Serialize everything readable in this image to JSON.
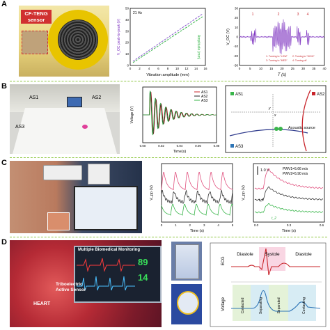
{
  "panels": {
    "a": {
      "letter": "A",
      "photo_label": "CF-TENG\nsensor",
      "chart1": {
        "annotation": "21 Hz",
        "xlabel": "Vibration amplitude (mm)",
        "ylabel_left": "V_OC peak-to-peak (V)",
        "ylabel_right": "Amplitude (mm)",
        "xticks": [
          "0",
          "2",
          "4",
          "6",
          "8",
          "10",
          "12",
          "14",
          "16"
        ],
        "ylticks": [
          "0",
          "10",
          "20",
          "30",
          "40",
          "50"
        ],
        "yrticks": [
          "0",
          "2",
          "4",
          "6",
          "8",
          "10",
          "12",
          "14",
          "16"
        ]
      },
      "chart2": {
        "xlabel": "T (s)",
        "ylabel": "V_OC (V)",
        "xticks": [
          "0",
          "5",
          "10",
          "15",
          "20",
          "25",
          "30",
          "35",
          "40"
        ],
        "yticks": [
          "-30",
          "-20",
          "-10",
          "0",
          "10",
          "20",
          "30"
        ],
        "legend": [
          "1: Turning to \"LOW\"",
          "2: Turning to \"HIGH\"",
          "3: Turning to \"MED\"",
          "4: Turning off"
        ]
      }
    },
    "b": {
      "letter": "B",
      "photo_labels": [
        "AS1",
        "AS2",
        "AS3"
      ],
      "chart": {
        "xlabel": "Time(s)",
        "ylabel": "Voltage (V)",
        "xticks": [
          "0.00",
          "0.02",
          "0.04",
          "0.06",
          "0.08"
        ],
        "legend": [
          "AS1",
          "AS2",
          "AS3"
        ]
      },
      "diagram": {
        "labels": [
          "AS1",
          "AS2",
          "AS3",
          "Acoustic source",
          "y",
          "x"
        ]
      }
    },
    "c": {
      "letter": "C",
      "chart1": {
        "xlabel": "Time (s)",
        "ylabel": "V_pp (V)",
        "xticks": [
          "0",
          "1",
          "2",
          "3",
          "4",
          "5"
        ]
      },
      "chart2": {
        "scale": "1.0 V",
        "pwv1": "PWV1=5.66 m/s",
        "pwv2": "PWV2=5.90 m/s",
        "xlabel": "Time (s)",
        "ylabel": "V_pp (V)",
        "xticks": [
          "0.0",
          "0.3",
          "0.6"
        ],
        "tags": [
          "t_1",
          "t_2"
        ]
      }
    },
    "d": {
      "letter": "D",
      "monitor_title": "Multiple Biomedical Monitoring",
      "monitor_val1": "89",
      "monitor_val2": "14",
      "sensor_label": "Triboelectric\nActive Sensor",
      "heart_label": "HEART",
      "diagram": {
        "ecg_label": "ECG",
        "voltage_label": "Voltage",
        "phases": [
          "Diastole",
          "Systole",
          "Diastole"
        ],
        "states": [
          "Contacted",
          "Separating",
          "Separated",
          "Contacting"
        ]
      }
    }
  },
  "colors": {
    "separator": "#8dc63f",
    "purple": "#7b2fbf",
    "pink": "#e0507e",
    "green": "#39b54a",
    "blue": "#2e75b6"
  }
}
